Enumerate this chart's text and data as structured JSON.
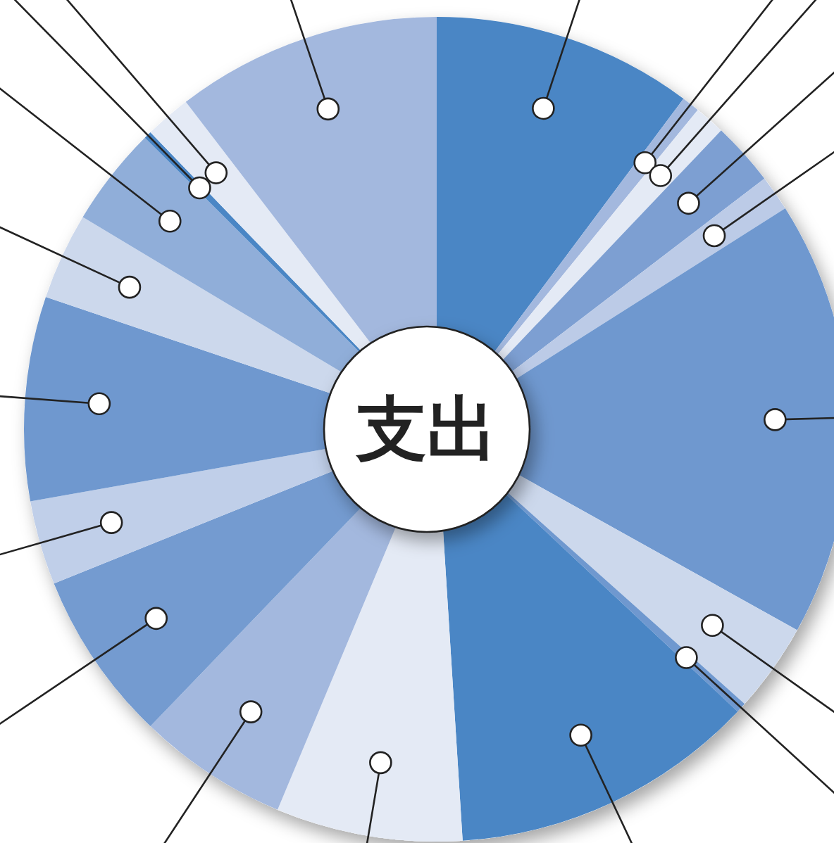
{
  "chart_data": {
    "type": "donut",
    "title": "支出",
    "categories": [
      null,
      null,
      null,
      null,
      null,
      null,
      null,
      null,
      null,
      null,
      null,
      null,
      null,
      null,
      null,
      null,
      null,
      null,
      null
    ],
    "values": [
      10.2,
      0.7,
      1.2,
      2.5,
      1.4,
      17.1,
      3.5,
      0.4,
      12.0,
      7.3,
      5.9,
      6.7,
      3.3,
      8.0,
      3.4,
      3.9,
      0.3,
      1.8,
      10.4
    ],
    "colors": [
      "#4a86c5",
      "#a3b8de",
      "#e4eaf5",
      "#7d9fd2",
      "#bccbe7",
      "#6f98cf",
      "#ccd8ec",
      "#6f98cf",
      "#4a86c5",
      "#e4eaf5",
      "#a3b8de",
      "#749bd0",
      "#c0cfe9",
      "#6f98cf",
      "#ccd8ec",
      "#90aed9",
      "#4a86c5",
      "#e4eaf5",
      "#a3b8de"
    ]
  }
}
